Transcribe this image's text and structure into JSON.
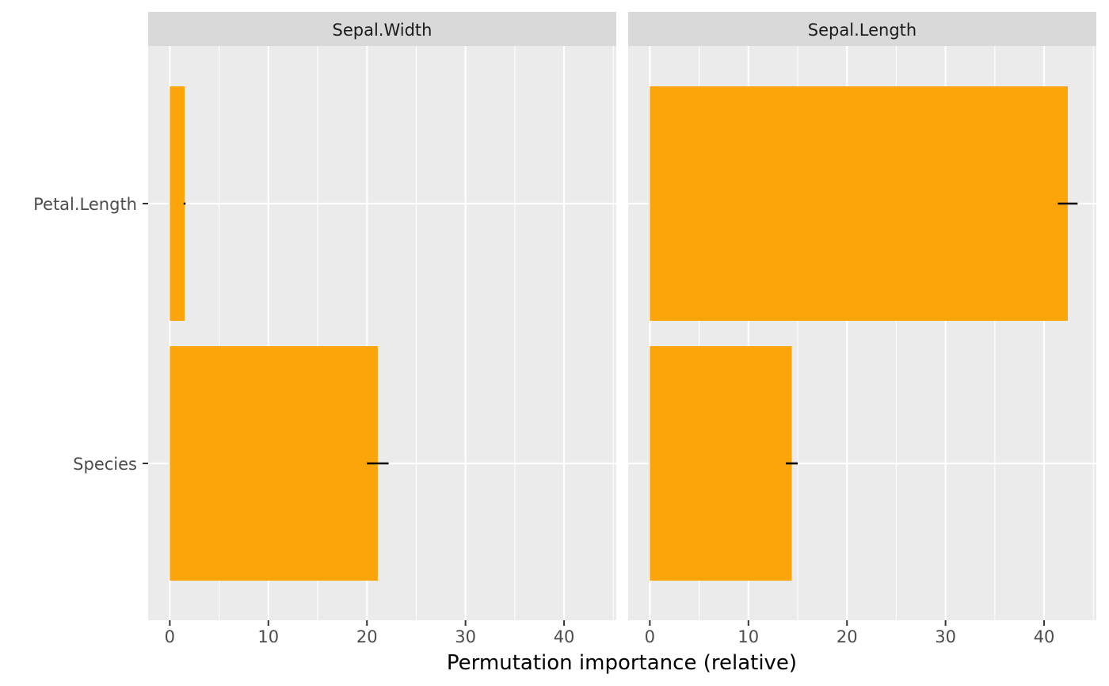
{
  "chart_data": {
    "type": "bar",
    "orientation": "horizontal",
    "xlabel": "Permutation importance (relative)",
    "ylabel": "",
    "xlim": [
      -2.2,
      45.3
    ],
    "x_ticks": [
      0,
      10,
      20,
      30,
      40
    ],
    "x_tick_labels": [
      "0",
      "10",
      "20",
      "30",
      "40"
    ],
    "categories": [
      "Petal.Length",
      "Species"
    ],
    "bar_color": "#FCA50A",
    "panel_background": "#EBEBEB",
    "strip_background": "#D9D9D9",
    "grid": true,
    "legend": "none",
    "facets": [
      {
        "name": "Sepal.Width",
        "values": [
          1.5,
          21.1
        ],
        "error_low": [
          1.4,
          20.0
        ],
        "error_high": [
          1.6,
          22.2
        ]
      },
      {
        "name": "Sepal.Length",
        "values": [
          42.4,
          14.4
        ],
        "error_low": [
          41.4,
          13.8
        ],
        "error_high": [
          43.4,
          15.0
        ]
      }
    ]
  }
}
